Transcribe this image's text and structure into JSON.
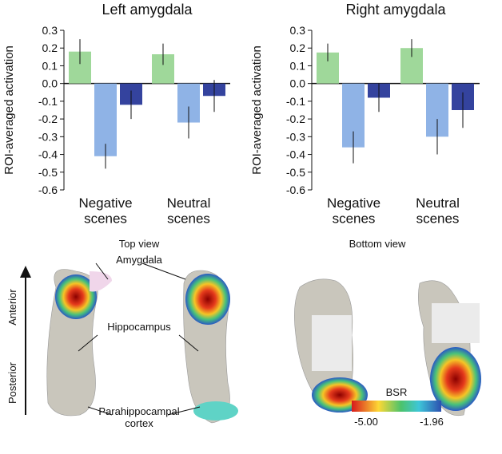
{
  "chart_data": [
    {
      "type": "bar",
      "title": "Left amygdala",
      "y_label": "ROI-averaged activation",
      "categories": [
        "Negative scenes",
        "Neutral scenes"
      ],
      "series": [
        {
          "color": "#9fd89a",
          "values": [
            0.18,
            0.165
          ],
          "errors": [
            0.07,
            0.06
          ]
        },
        {
          "color": "#8fb3e6",
          "values": [
            -0.41,
            -0.22
          ],
          "errors": [
            0.07,
            0.09
          ]
        },
        {
          "color": "#34439e",
          "values": [
            -0.12,
            -0.07
          ],
          "errors": [
            0.08,
            0.09
          ]
        }
      ],
      "ylim": [
        -0.6,
        0.3
      ],
      "yticks": [
        0.3,
        0.2,
        0.1,
        {
          "value": 0,
          "label": "0.0"
        },
        -0.1,
        -0.2,
        -0.3,
        -0.4,
        -0.5,
        -0.6
      ]
    },
    {
      "type": "bar",
      "title": "Right amygdala",
      "y_label": "ROI-averaged activation",
      "categories": [
        "Negative scenes",
        "Neutral scenes"
      ],
      "series": [
        {
          "color": "#9fd89a",
          "values": [
            0.175,
            0.2
          ],
          "errors": [
            0.05,
            0.05
          ]
        },
        {
          "color": "#8fb3e6",
          "values": [
            -0.36,
            -0.3
          ],
          "errors": [
            0.09,
            0.1
          ]
        },
        {
          "color": "#34439e",
          "values": [
            -0.08,
            -0.15
          ],
          "errors": [
            0.08,
            0.1
          ]
        }
      ],
      "ylim": [
        -0.6,
        0.3
      ],
      "yticks": [
        0.3,
        0.2,
        0.1,
        {
          "value": 0,
          "label": "0.0"
        },
        -0.1,
        -0.2,
        -0.3,
        -0.4,
        -0.5,
        -0.6
      ]
    }
  ],
  "figure_labels": {
    "top_view": "Top view",
    "bottom_view": "Bottom view",
    "amygdala": "Amygdala",
    "hippocampus": "Hippocampus",
    "parahippocampal": "Parahippocampal cortex",
    "anterior": "Anterior",
    "posterior": "Posterior",
    "colorbar_title": "BSR",
    "colorbar_min": "-5.00",
    "colorbar_max": "-1.96"
  }
}
